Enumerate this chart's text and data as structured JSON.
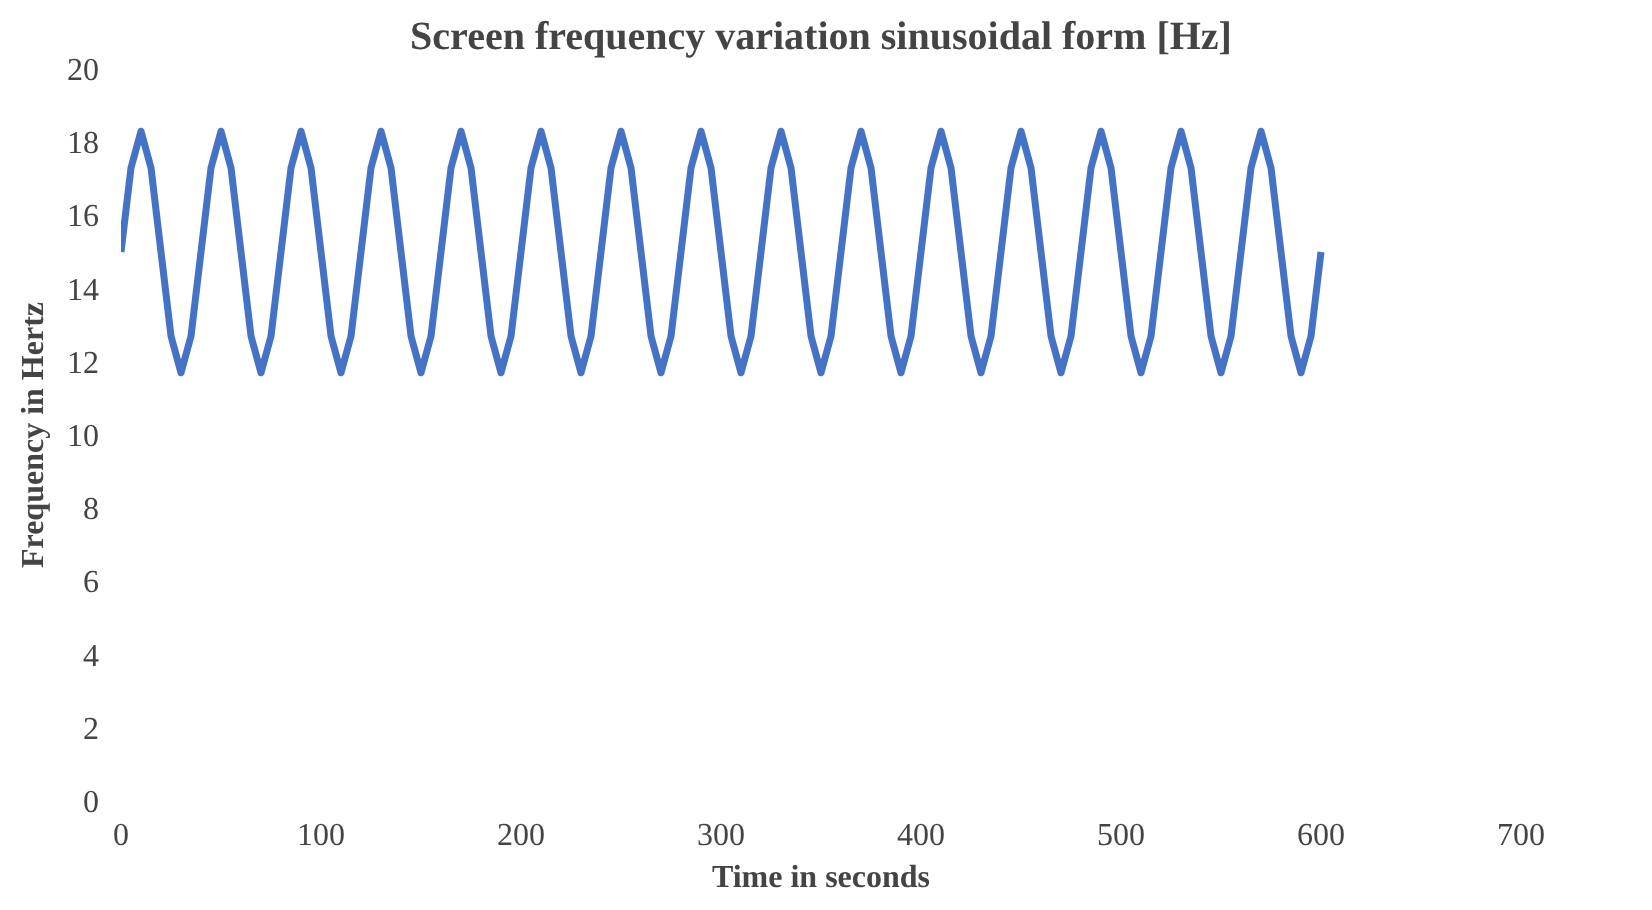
{
  "chart_data": {
    "type": "line",
    "title": "Screen frequency variation sinusoidal form [Hz]",
    "xlabel": "Time in seconds",
    "ylabel": "Frequency in Hertz",
    "x": [
      0,
      5,
      10,
      15,
      20,
      25,
      30,
      35,
      40,
      45,
      50,
      55,
      60,
      65,
      70,
      75,
      80,
      85,
      90,
      95,
      100,
      105,
      110,
      115,
      120,
      125,
      130,
      135,
      140,
      145,
      150,
      155,
      160,
      165,
      170,
      175,
      180,
      185,
      190,
      195,
      200,
      205,
      210,
      215,
      220,
      225,
      230,
      235,
      240,
      245,
      250,
      255,
      260,
      265,
      270,
      275,
      280,
      285,
      290,
      295,
      300,
      305,
      310,
      315,
      320,
      325,
      330,
      335,
      340,
      345,
      350,
      355,
      360,
      365,
      370,
      375,
      380,
      385,
      390,
      395,
      400,
      405,
      410,
      415,
      420,
      425,
      430,
      435,
      440,
      445,
      450,
      455,
      460,
      465,
      470,
      475,
      480,
      485,
      490,
      495,
      500,
      505,
      510,
      515,
      520,
      525,
      530,
      535,
      540,
      545,
      550,
      555,
      560,
      565,
      570,
      575,
      580,
      585,
      590,
      595,
      600
    ],
    "series": [
      {
        "color": "#4472c4",
        "values": [
          15,
          17.3,
          18.3,
          17.3,
          15,
          12.7,
          11.7,
          12.7,
          15,
          17.3,
          18.3,
          17.3,
          15,
          12.7,
          11.7,
          12.7,
          15,
          17.3,
          18.3,
          17.3,
          15,
          12.7,
          11.7,
          12.7,
          15,
          17.3,
          18.3,
          17.3,
          15,
          12.7,
          11.7,
          12.7,
          15,
          17.3,
          18.3,
          17.3,
          15,
          12.7,
          11.7,
          12.7,
          15,
          17.3,
          18.3,
          17.3,
          15,
          12.7,
          11.7,
          12.7,
          15,
          17.3,
          18.3,
          17.3,
          15,
          12.7,
          11.7,
          12.7,
          15,
          17.3,
          18.3,
          17.3,
          15,
          12.7,
          11.7,
          12.7,
          15,
          17.3,
          18.3,
          17.3,
          15,
          12.7,
          11.7,
          12.7,
          15,
          17.3,
          18.3,
          17.3,
          15,
          12.7,
          11.7,
          12.7,
          15,
          17.3,
          18.3,
          17.3,
          15,
          12.7,
          11.7,
          12.7,
          15,
          17.3,
          18.3,
          17.3,
          15,
          12.7,
          11.7,
          12.7,
          15,
          17.3,
          18.3,
          17.3,
          15,
          12.7,
          11.7,
          12.7,
          15,
          17.3,
          18.3,
          17.3,
          15,
          12.7,
          11.7,
          12.7,
          15,
          17.3,
          18.3,
          17.3,
          15,
          12.7,
          11.7,
          12.7,
          15
        ]
      }
    ],
    "xlim": [
      0,
      700
    ],
    "xticks": [
      0,
      100,
      200,
      300,
      400,
      500,
      600,
      700
    ],
    "ylim": [
      0,
      20
    ],
    "yticks": [
      0,
      2,
      4,
      6,
      8,
      10,
      12,
      14,
      16,
      18,
      20
    ],
    "line_style": "solid"
  }
}
